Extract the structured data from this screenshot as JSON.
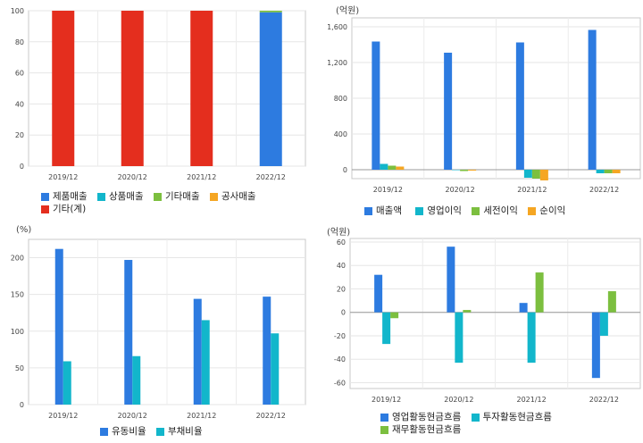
{
  "chart_data": [
    {
      "id": "sales-mix",
      "type": "bar",
      "stacked": true,
      "unit": "",
      "categories": [
        "2019/12",
        "2020/12",
        "2021/12",
        "2022/12"
      ],
      "ylim": [
        0,
        100
      ],
      "yticks": [
        0,
        20,
        40,
        60,
        80,
        100
      ],
      "grid": true,
      "legend_position": "bottom-left",
      "series": [
        {
          "name": "제품매출",
          "color": "#2d7be0",
          "values": [
            0,
            0,
            0,
            99
          ]
        },
        {
          "name": "상품매출",
          "color": "#12b6cb",
          "values": [
            0,
            0,
            0,
            0
          ]
        },
        {
          "name": "기타매출",
          "color": "#7cbf3f",
          "values": [
            0,
            0,
            0,
            1
          ]
        },
        {
          "name": "공사매출",
          "color": "#f5a623",
          "values": [
            0,
            0,
            0,
            0
          ]
        },
        {
          "name": "기타(계)",
          "color": "#e42e1e",
          "values": [
            100,
            100,
            100,
            0
          ]
        }
      ]
    },
    {
      "id": "income",
      "type": "bar",
      "unit": "(억원)",
      "categories": [
        "2019/12",
        "2020/12",
        "2021/12",
        "2022/12"
      ],
      "ylim": [
        -100,
        1700
      ],
      "yticks": [
        0,
        400,
        800,
        1200,
        1600
      ],
      "ytick_labels": [
        "0",
        "400",
        "800",
        "1,200",
        "1,600"
      ],
      "grid": true,
      "legend_position": "bottom",
      "series": [
        {
          "name": "매출액",
          "color": "#2d7be0",
          "values": [
            1435,
            1310,
            1425,
            1565
          ]
        },
        {
          "name": "영업이익",
          "color": "#12b6cb",
          "values": [
            65,
            -5,
            -90,
            -40
          ]
        },
        {
          "name": "세전이익",
          "color": "#7cbf3f",
          "values": [
            45,
            -15,
            -100,
            -40
          ]
        },
        {
          "name": "순이익",
          "color": "#f5a623",
          "values": [
            35,
            -10,
            -120,
            -40
          ]
        }
      ]
    },
    {
      "id": "ratios",
      "type": "bar",
      "unit": "(%)",
      "categories": [
        "2019/12",
        "2020/12",
        "2021/12",
        "2022/12"
      ],
      "ylim": [
        0,
        225
      ],
      "yticks": [
        0,
        50,
        100,
        150,
        200
      ],
      "grid": true,
      "legend_position": "bottom",
      "series": [
        {
          "name": "유동비율",
          "color": "#2d7be0",
          "values": [
            212,
            197,
            144,
            147
          ]
        },
        {
          "name": "부채비율",
          "color": "#12b6cb",
          "values": [
            59,
            66,
            115,
            97
          ]
        }
      ]
    },
    {
      "id": "cashflow",
      "type": "bar",
      "unit": "(억원)",
      "categories": [
        "2019/12",
        "2020/12",
        "2021/12",
        "2022/12"
      ],
      "ylim": [
        -65,
        63
      ],
      "yticks": [
        -60,
        -40,
        -20,
        0,
        20,
        40,
        60
      ],
      "grid": true,
      "legend_position": "bottom",
      "series": [
        {
          "name": "영업활동현금흐름",
          "color": "#2d7be0",
          "values": [
            32,
            56,
            8,
            -56
          ]
        },
        {
          "name": "투자활동현금흐름",
          "color": "#12b6cb",
          "values": [
            -27,
            -43,
            -43,
            -20
          ]
        },
        {
          "name": "재무활동현금흐름",
          "color": "#7cbf3f",
          "values": [
            -5,
            2,
            34,
            18
          ]
        }
      ]
    }
  ]
}
